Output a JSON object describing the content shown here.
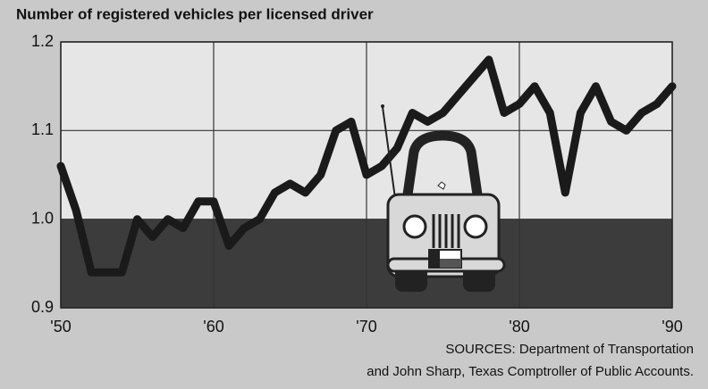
{
  "chart_data": {
    "type": "line",
    "title": "Number of registered vehicles per licensed driver",
    "x": [
      1950,
      1951,
      1952,
      1953,
      1954,
      1955,
      1956,
      1957,
      1958,
      1959,
      1960,
      1961,
      1962,
      1963,
      1964,
      1965,
      1966,
      1967,
      1968,
      1969,
      1970,
      1971,
      1972,
      1973,
      1974,
      1975,
      1976,
      1977,
      1978,
      1979,
      1980,
      1981,
      1982,
      1983,
      1984,
      1985,
      1986,
      1987,
      1988,
      1989,
      1990
    ],
    "values": [
      1.06,
      1.01,
      0.94,
      0.94,
      0.94,
      1.0,
      0.98,
      1.0,
      0.99,
      1.02,
      1.02,
      0.97,
      0.99,
      1.0,
      1.03,
      1.04,
      1.03,
      1.05,
      1.1,
      1.11,
      1.05,
      1.06,
      1.08,
      1.12,
      1.11,
      1.12,
      1.14,
      1.16,
      1.18,
      1.12,
      1.13,
      1.15,
      1.12,
      1.03,
      1.12,
      1.15,
      1.11,
      1.1,
      1.12,
      1.13,
      1.15
    ],
    "color": "#1a1a1a",
    "xlim": [
      1950,
      1990
    ],
    "xticks": [
      {
        "value": 1950,
        "label": "'50"
      },
      {
        "value": 1960,
        "label": "'60"
      },
      {
        "value": 1970,
        "label": "'70"
      },
      {
        "value": 1980,
        "label": "'80"
      },
      {
        "value": 1990,
        "label": "'90"
      }
    ],
    "ylim": [
      0.9,
      1.2
    ],
    "yticks": [
      0.9,
      {
        "value": 1,
        "label": "1.0"
      },
      1.1,
      1.2
    ],
    "grid": true,
    "shade_below": 1,
    "source": [
      "SOURCES: Department of Transportation",
      "and John Sharp, Texas Comptroller of Public Accounts."
    ]
  }
}
